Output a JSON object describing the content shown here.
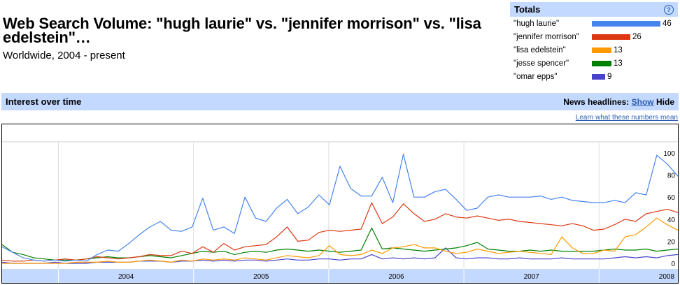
{
  "header": {
    "title": "Web Search Volume: \"hugh laurie\" vs. \"jennifer morrison\" vs. \"lisa edelstein\"…",
    "subtitle": "Worldwide, 2004 - present"
  },
  "totals": {
    "heading": "Totals",
    "help": "?",
    "max": 46,
    "items": [
      {
        "label": "\"hugh laurie\"",
        "value": 46,
        "color": "#4684ee"
      },
      {
        "label": "\"jennifer morrison\"",
        "value": 26,
        "color": "#dc3912"
      },
      {
        "label": "\"lisa edelstein\"",
        "value": 13,
        "color": "#ff9900"
      },
      {
        "label": "\"jesse spencer\"",
        "value": 13,
        "color": "#008000"
      },
      {
        "label": "\"omar epps\"",
        "value": 9,
        "color": "#4942cc"
      }
    ]
  },
  "interest": {
    "title": "Interest over time",
    "news_label": "News headlines:",
    "show": "Show",
    "hide": "Hide",
    "learn": "Learn what these numbers mean"
  },
  "chart_data": {
    "type": "line",
    "x_start": "2003-08",
    "x_end": "2008-08",
    "ylim": [
      0,
      110
    ],
    "yticks": [
      0,
      20,
      40,
      60,
      80,
      100
    ],
    "xticks": [
      {
        "label": "2004",
        "year": 2004
      },
      {
        "label": "2005",
        "year": 2005
      },
      {
        "label": "2006",
        "year": 2006
      },
      {
        "label": "2007",
        "year": 2007
      },
      {
        "label": "2008",
        "year": 2008
      }
    ],
    "series": [
      {
        "name": "\"hugh laurie\"",
        "color": "#4684ee",
        "values": [
          15,
          10,
          5,
          3,
          2,
          3,
          2,
          3,
          2,
          8,
          12,
          11,
          18,
          26,
          33,
          38,
          30,
          29,
          33,
          59,
          30,
          33,
          27,
          60,
          41,
          38,
          50,
          58,
          45,
          51,
          62,
          53,
          88,
          68,
          61,
          61,
          78,
          55,
          99,
          60,
          60,
          65,
          67,
          58,
          48,
          50,
          60,
          62,
          60,
          60,
          60,
          61,
          58,
          60,
          57,
          56,
          55,
          55,
          57,
          55,
          64,
          62,
          98,
          90,
          79
        ]
      },
      {
        "name": "\"jennifer morrison\"",
        "color": "#dc3912",
        "values": [
          3,
          2,
          2,
          3,
          2,
          3,
          4,
          3,
          4,
          6,
          5,
          4,
          5,
          6,
          8,
          7,
          7,
          11,
          9,
          15,
          10,
          18,
          12,
          15,
          16,
          17,
          24,
          33,
          20,
          21,
          28,
          30,
          29,
          30,
          31,
          55,
          36,
          42,
          54,
          45,
          38,
          40,
          45,
          42,
          41,
          43,
          41,
          39,
          40,
          38,
          37,
          36,
          35,
          34,
          36,
          34,
          30,
          31,
          35,
          40,
          38,
          45,
          47,
          49,
          46
        ]
      },
      {
        "name": "\"lisa edelstein\"",
        "color": "#ff9900",
        "values": [
          0,
          0,
          0,
          0,
          0,
          0,
          0,
          1,
          1,
          1,
          2,
          1,
          1,
          2,
          3,
          2,
          1,
          3,
          2,
          4,
          3,
          4,
          3,
          5,
          4,
          3,
          5,
          7,
          6,
          5,
          7,
          16,
          8,
          7,
          8,
          12,
          9,
          14,
          15,
          17,
          14,
          14,
          11,
          9,
          10,
          13,
          11,
          9,
          10,
          11,
          10,
          9,
          8,
          24,
          14,
          9,
          9,
          12,
          11,
          24,
          26,
          33,
          41,
          35,
          30
        ]
      },
      {
        "name": "\"jesse spencer\"",
        "color": "#008000",
        "values": [
          17,
          10,
          8,
          5,
          4,
          3,
          3,
          3,
          4,
          5,
          6,
          5,
          5,
          6,
          7,
          6,
          5,
          7,
          9,
          11,
          10,
          11,
          8,
          10,
          11,
          10,
          12,
          13,
          12,
          11,
          12,
          11,
          10,
          11,
          12,
          32,
          13,
          14,
          13,
          12,
          11,
          12,
          13,
          14,
          16,
          19,
          13,
          12,
          11,
          11,
          12,
          11,
          12,
          11,
          11,
          11,
          11,
          12,
          13,
          12,
          12,
          13,
          11,
          12,
          13
        ]
      },
      {
        "name": "\"omar epps\"",
        "color": "#4942cc",
        "values": [
          1,
          0,
          0,
          0,
          0,
          1,
          0,
          0,
          0,
          1,
          1,
          1,
          1,
          2,
          2,
          2,
          1,
          2,
          2,
          3,
          2,
          3,
          2,
          3,
          3,
          2,
          3,
          4,
          3,
          3,
          4,
          4,
          3,
          4,
          4,
          8,
          4,
          5,
          4,
          5,
          4,
          5,
          14,
          5,
          4,
          5,
          5,
          4,
          4,
          5,
          4,
          4,
          4,
          5,
          4,
          4,
          4,
          4,
          5,
          6,
          5,
          6,
          5,
          7,
          8
        ]
      }
    ]
  }
}
